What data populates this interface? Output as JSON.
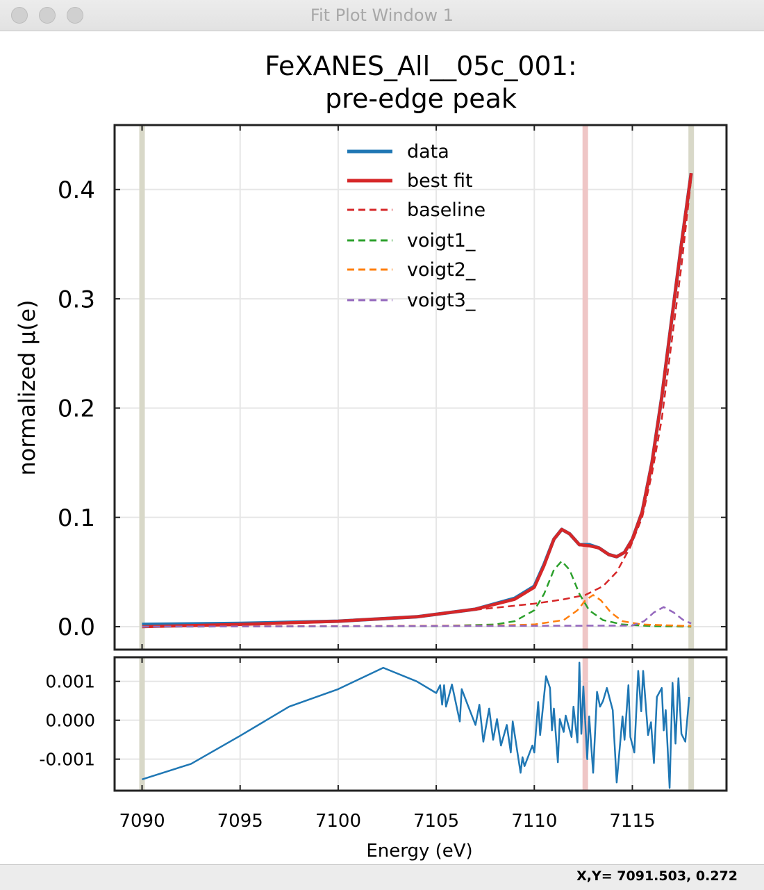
{
  "window": {
    "title": "Fit Plot Window 1"
  },
  "status": {
    "coords": "X,Y= 7091.503, 0.272"
  },
  "chart_data": [
    {
      "type": "line",
      "title": "FeXANES_All__05c_001:",
      "subtitle": "pre-edge peak",
      "xlabel": "Energy (eV)",
      "ylabel": "normalized μ(e)",
      "xlim": [
        7088.6,
        7119.8
      ],
      "ylim": [
        -0.021,
        0.459
      ],
      "xticks": [
        "7090",
        "7095",
        "7100",
        "7105",
        "7110",
        "7115"
      ],
      "xtick_values": [
        7090,
        7095,
        7100,
        7105,
        7110,
        7115
      ],
      "yticks": [
        "0.0",
        "0.1",
        "0.2",
        "0.3",
        "0.4"
      ],
      "ytick_values": [
        0,
        0.1,
        0.2,
        0.3,
        0.4
      ],
      "grid": true,
      "legend": "top-center",
      "markers": [
        {
          "x": 7090,
          "color": "#d8d8c8"
        },
        {
          "x": 7118,
          "color": "#d8d8c8"
        },
        {
          "x": 7112.6,
          "color": "#efc6c6"
        }
      ],
      "series": [
        {
          "name": "data",
          "style": "solid",
          "color": "#1f77b4",
          "x": [
            7090,
            7095,
            7100,
            7104,
            7107,
            7109,
            7110,
            7110.5,
            7111,
            7111.4,
            7111.8,
            7112.3,
            7112.8,
            7113.3,
            7113.8,
            7114.2,
            7114.6,
            7115,
            7115.5,
            7116,
            7116.5,
            7117,
            7117.5,
            7118
          ],
          "y": [
            0.002,
            0.003,
            0.005,
            0.009,
            0.016,
            0.026,
            0.037,
            0.057,
            0.08,
            0.089,
            0.085,
            0.075,
            0.075,
            0.072,
            0.066,
            0.064,
            0.068,
            0.08,
            0.105,
            0.15,
            0.21,
            0.28,
            0.35,
            0.415
          ]
        },
        {
          "name": "best fit",
          "style": "solid",
          "color": "#d62728",
          "x": [
            7090,
            7095,
            7100,
            7104,
            7107,
            7109,
            7110,
            7110.5,
            7111,
            7111.4,
            7111.8,
            7112.3,
            7112.8,
            7113.3,
            7113.8,
            7114.2,
            7114.6,
            7115,
            7115.5,
            7116,
            7116.5,
            7117,
            7117.5,
            7118
          ],
          "y": [
            0.0,
            0.002,
            0.005,
            0.009,
            0.016,
            0.025,
            0.036,
            0.056,
            0.08,
            0.089,
            0.085,
            0.075,
            0.074,
            0.072,
            0.066,
            0.064,
            0.068,
            0.08,
            0.105,
            0.15,
            0.21,
            0.28,
            0.35,
            0.415
          ]
        },
        {
          "name": "baseline",
          "style": "dashed",
          "color": "#d62728",
          "x": [
            7090,
            7095,
            7100,
            7104,
            7107.3,
            7110,
            7111.5,
            7112.6,
            7113.5,
            7114.2,
            7114.9,
            7115.5,
            7116,
            7116.5,
            7117,
            7117.5,
            7118
          ],
          "y": [
            0.0,
            0.002,
            0.005,
            0.009,
            0.016,
            0.021,
            0.025,
            0.029,
            0.037,
            0.05,
            0.073,
            0.1,
            0.14,
            0.19,
            0.26,
            0.33,
            0.41
          ]
        },
        {
          "name": "voigt1_",
          "style": "dashed",
          "color": "#2ca02c",
          "x": [
            7090,
            7105,
            7108,
            7109,
            7110,
            7110.5,
            7111,
            7111.4,
            7111.8,
            7112.3,
            7112.8,
            7113.5,
            7114.5,
            7116,
            7118
          ],
          "y": [
            0,
            0.0005,
            0.002,
            0.005,
            0.015,
            0.03,
            0.052,
            0.06,
            0.052,
            0.03,
            0.015,
            0.006,
            0.002,
            0.0005,
            0
          ]
        },
        {
          "name": "voigt2_",
          "style": "dashed",
          "color": "#ff7f0e",
          "x": [
            7090,
            7108,
            7110,
            7111.5,
            7112.2,
            7112.6,
            7113,
            7113.4,
            7113.9,
            7114.5,
            7115.5,
            7118
          ],
          "y": [
            0,
            0.001,
            0.002,
            0.006,
            0.015,
            0.024,
            0.029,
            0.024,
            0.013,
            0.005,
            0.002,
            0.0005
          ]
        },
        {
          "name": "voigt3_",
          "style": "dashed",
          "color": "#9467bd",
          "x": [
            7090,
            7115,
            7115.6,
            7116.1,
            7116.6,
            7117.1,
            7117.6,
            7118
          ],
          "y": [
            0,
            0.001,
            0.005,
            0.013,
            0.018,
            0.013,
            0.006,
            0.003
          ]
        }
      ]
    },
    {
      "type": "line",
      "xlim": [
        7088.6,
        7119.8
      ],
      "ylim": [
        -0.00181,
        0.00162
      ],
      "yticks": [
        "0.001",
        "0.000",
        "-0.001"
      ],
      "ytick_values": [
        0.001,
        0,
        -0.001
      ],
      "grid": true,
      "series": [
        {
          "style": "solid",
          "color": "#1f77b4",
          "x": [
            7090,
            7092.5,
            7095,
            7097.5,
            7100,
            7102.3,
            7104,
            7105,
            7105.2,
            7105.3,
            7105.4,
            7105.5,
            7105.8,
            7106.2,
            7106.3,
            7106.6,
            7107.0,
            7107.2,
            7107.4,
            7107.7,
            7107.9,
            7108.1,
            7108.3,
            7108.6,
            7108.8,
            7108.9,
            7109.3,
            7109.4,
            7109.5,
            7109.9,
            7110.0,
            7110.2,
            7110.3,
            7110.6,
            7110.8,
            7110.9,
            7111.0,
            7111.2,
            7111.3,
            7111.5,
            7111.6,
            7111.9,
            7112.0,
            7112.2,
            7112.3,
            7112.4,
            7112.5,
            7112.7,
            7112.8,
            7113.0,
            7113.2,
            7113.35,
            7113.5,
            7113.7,
            7114.0,
            7114.2,
            7114.5,
            7114.6,
            7114.8,
            7114.9,
            7115.1,
            7115.3,
            7115.45,
            7115.55,
            7115.8,
            7115.95,
            7116.1,
            7116.25,
            7116.5,
            7116.6,
            7116.7,
            7116.9,
            7117.05,
            7117.2,
            7117.35,
            7117.5,
            7117.7,
            7117.9
          ],
          "y": [
            -0.00152,
            -0.00112,
            -0.0004,
            0.00035,
            0.0008,
            0.00135,
            0.001,
            0.0007,
            0.0009,
            0.0004,
            0.0009,
            0.00035,
            0.00092,
            -3e-05,
            0.0008,
            0.0004,
            -0.00012,
            0.0004,
            -0.00055,
            0.0003,
            -0.0005,
            3e-05,
            -0.00065,
            -0.00012,
            -0.00083,
            -3e-05,
            -0.00135,
            -0.00095,
            -0.00118,
            -0.00065,
            -0.00083,
            0.00047,
            -0.00038,
            0.00113,
            0.00083,
            -0.00026,
            0.0003,
            -0.00108,
            3e-05,
            -0.0003,
            0.00012,
            -0.00043,
            0.00035,
            -0.00057,
            0.00148,
            -0.00035,
            0.00087,
            -0.001,
            0.0001,
            -0.00135,
            0.00073,
            0.00035,
            0.00049,
            0.00083,
            0.00026,
            -0.0016,
            0.0001,
            -0.0005,
            0.0009,
            -0.00043,
            -0.00083,
            0.00127,
            0.00023,
            0.00127,
            -0.00038,
            -5e-05,
            -0.0011,
            0.0006,
            0.00083,
            -0.00026,
            0.00026,
            -0.00174,
            0.00096,
            -0.0006,
            0.00108,
            -0.00035,
            -0.00055,
            0.0006
          ]
        }
      ]
    }
  ]
}
